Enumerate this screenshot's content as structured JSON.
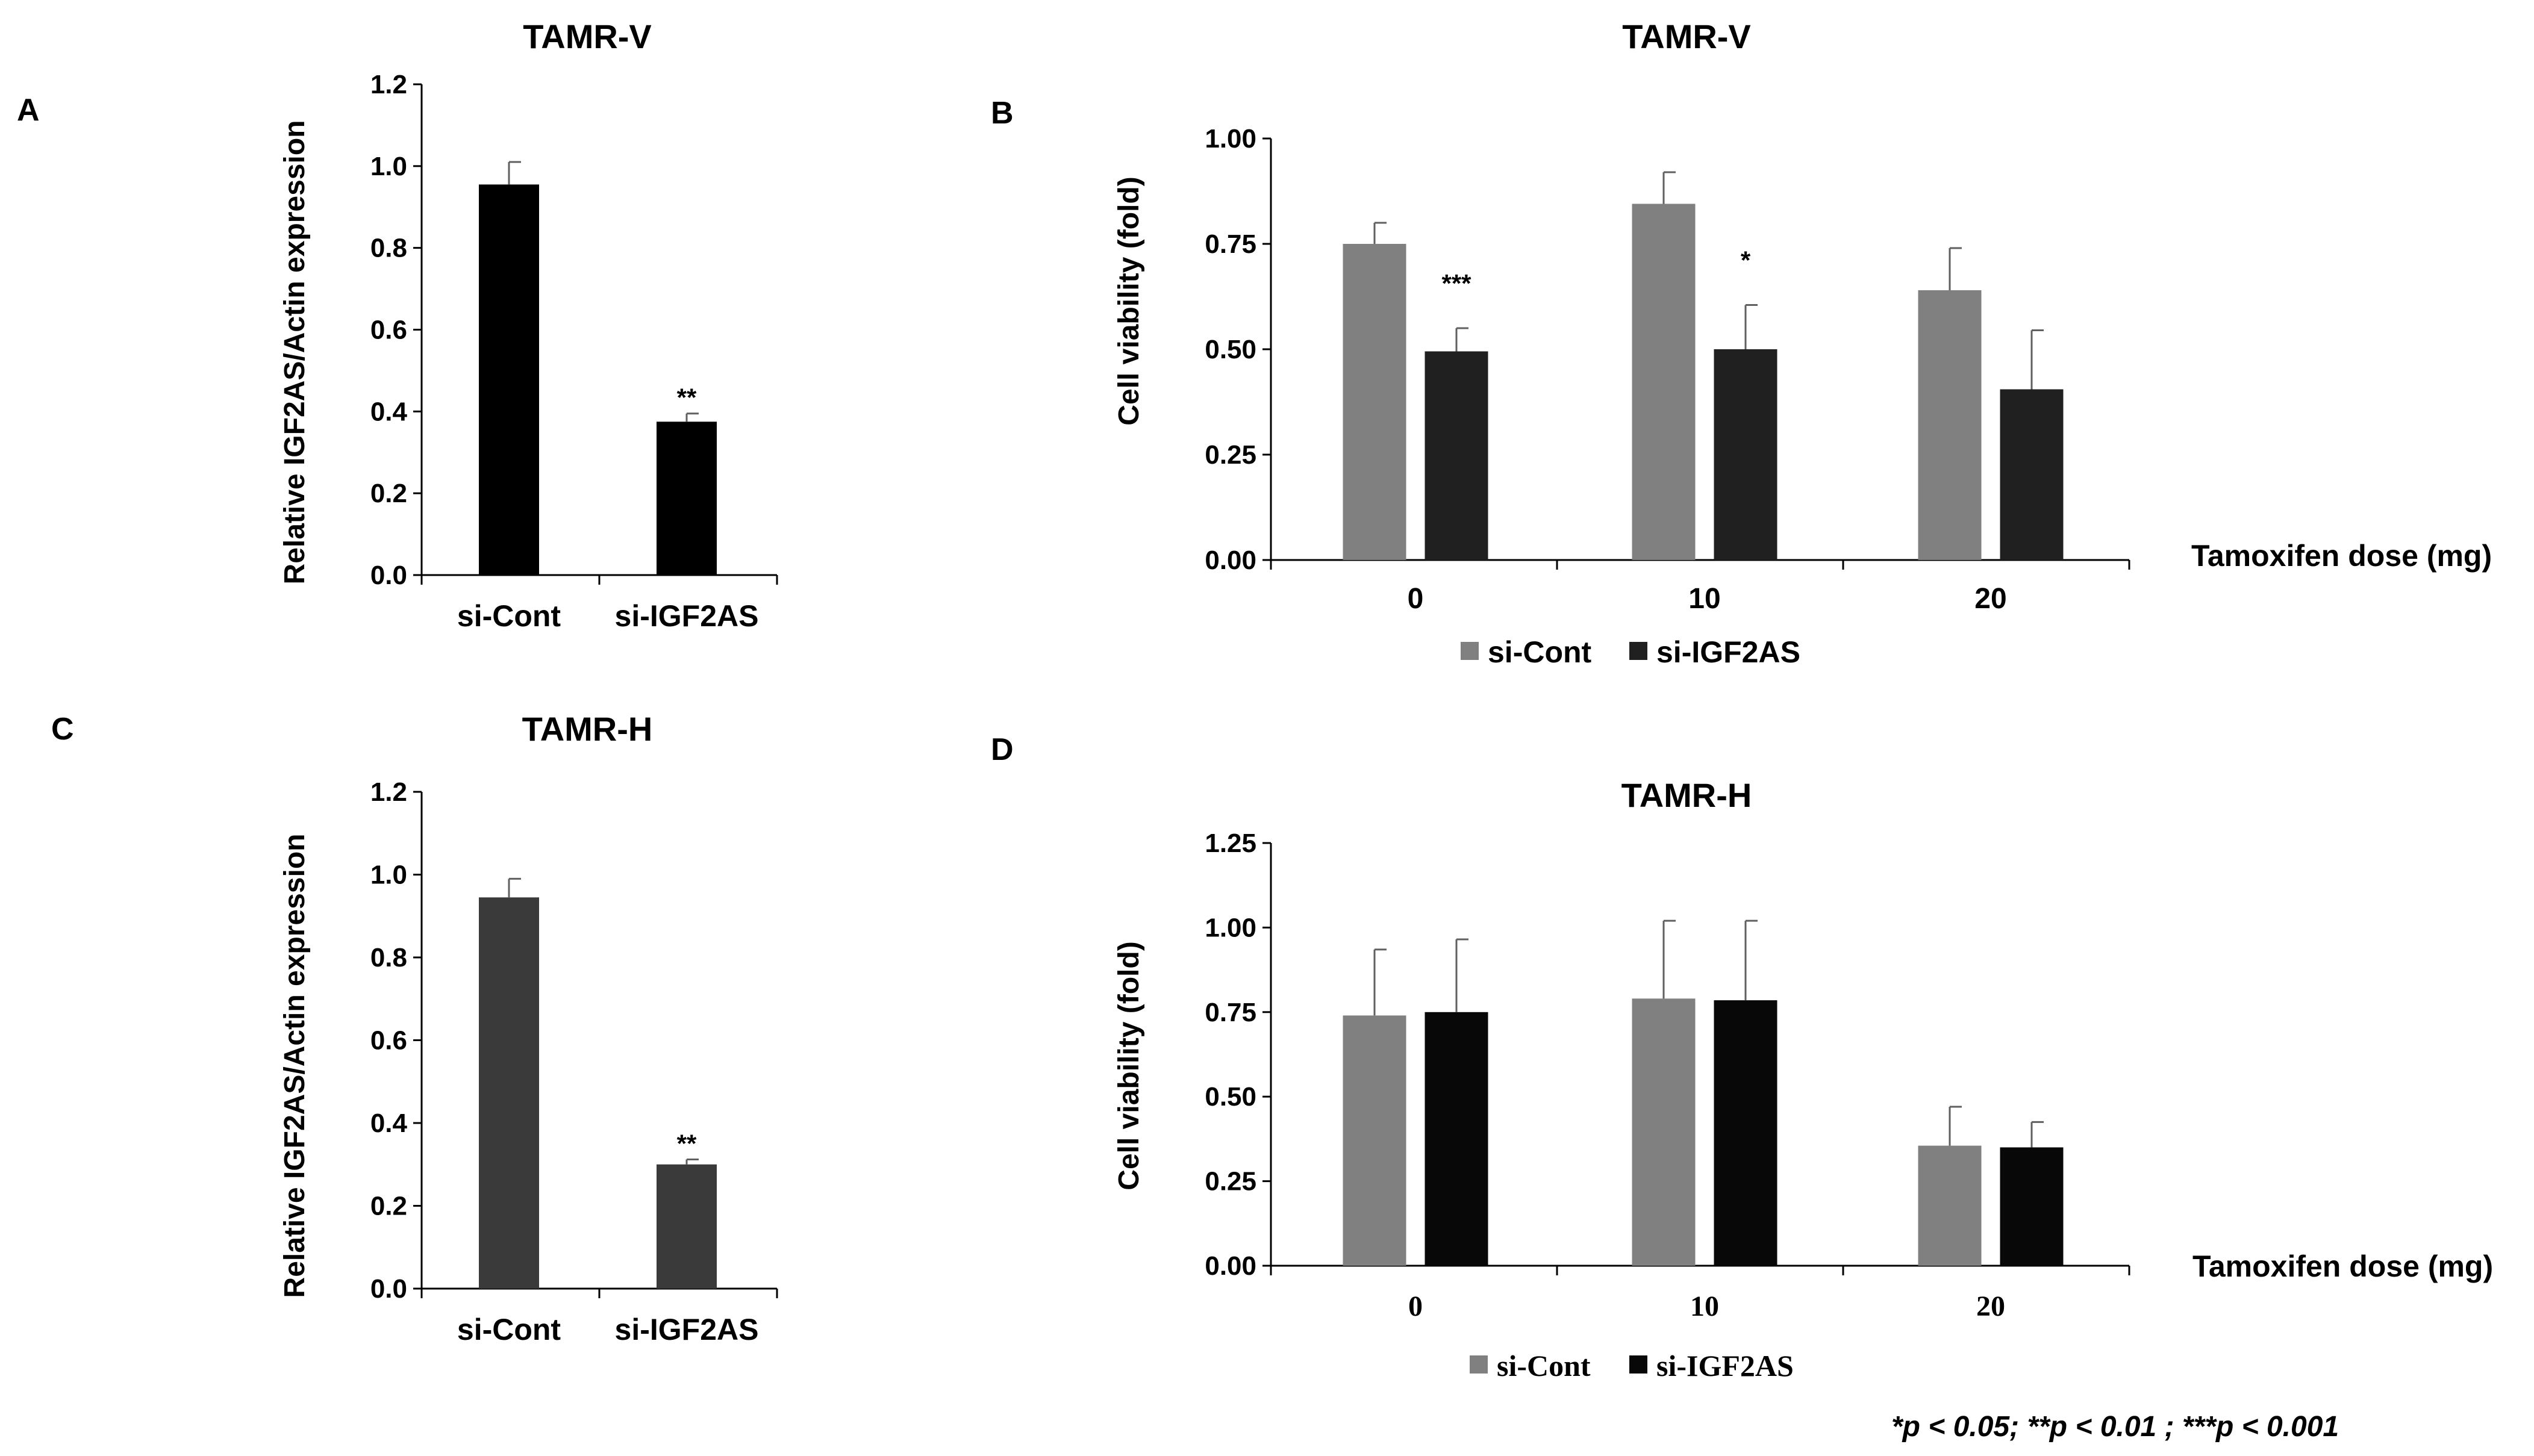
{
  "footnote": "*p < 0.05; **p < 0.01 ; ***p < 0.001",
  "colors": {
    "bar_black": "#000000",
    "bar_dark": "#3a3a3a",
    "gray": "#808080",
    "darkgray": "#202020",
    "black2": "#080808"
  },
  "chart_data": [
    {
      "panel": "A",
      "type": "bar",
      "title": "TAMR-V",
      "ylabel": "Relative IGF2AS/Actin expression",
      "xlabel": "",
      "ylim": [
        0,
        1.2
      ],
      "yticks": [
        "0.0",
        "0.2",
        "0.4",
        "0.6",
        "0.8",
        "1.0",
        "1.2"
      ],
      "categories": [
        "si-Cont",
        "si-IGF2AS"
      ],
      "values": [
        0.955,
        0.375
      ],
      "errors": [
        0.055,
        0.02
      ],
      "annotations": [
        "",
        "**"
      ]
    },
    {
      "panel": "B",
      "type": "bar",
      "title": "TAMR-V",
      "ylabel": "Cell viability (fold)",
      "xlabel": "Tamoxifen dose (mg)",
      "ylim": [
        0,
        1.0
      ],
      "yticks": [
        "0.00",
        "0.25",
        "0.50",
        "0.75",
        "1.00"
      ],
      "categories": [
        "0",
        "10",
        "20"
      ],
      "series": [
        {
          "name": "si-Cont",
          "values": [
            0.75,
            0.845,
            0.64
          ],
          "errors": [
            0.05,
            0.075,
            0.1
          ]
        },
        {
          "name": "si-IGF2AS",
          "values": [
            0.495,
            0.5,
            0.405
          ],
          "errors": [
            0.055,
            0.105,
            0.14
          ]
        }
      ],
      "annotations": [
        {
          "cat": 0,
          "series": 1,
          "text": "***"
        },
        {
          "cat": 1,
          "series": 1,
          "text": "*"
        }
      ],
      "legend": "bottom"
    },
    {
      "panel": "C",
      "type": "bar",
      "title": "TAMR-H",
      "ylabel": "Relative IGF2AS/Actin expression",
      "xlabel": "",
      "ylim": [
        0,
        1.2
      ],
      "yticks": [
        "0.0",
        "0.2",
        "0.4",
        "0.6",
        "0.8",
        "1.0",
        "1.2"
      ],
      "categories": [
        "si-Cont",
        "si-IGF2AS"
      ],
      "values": [
        0.945,
        0.3
      ],
      "errors": [
        0.045,
        0.012
      ],
      "annotations": [
        "",
        "**"
      ]
    },
    {
      "panel": "D",
      "type": "bar",
      "title": "TAMR-H",
      "ylabel": "Cell viability (fold)",
      "xlabel": "Tamoxifen dose (mg)",
      "ylim": [
        0,
        1.25
      ],
      "yticks": [
        "0.00",
        "0.25",
        "0.50",
        "0.75",
        "1.00",
        "1.25"
      ],
      "categories": [
        "0",
        "10",
        "20"
      ],
      "series": [
        {
          "name": "si-Cont",
          "values": [
            0.74,
            0.79,
            0.355
          ],
          "errors": [
            0.195,
            0.23,
            0.115
          ]
        },
        {
          "name": "si-IGF2AS",
          "values": [
            0.75,
            0.785,
            0.35
          ],
          "errors": [
            0.215,
            0.235,
            0.075
          ]
        }
      ],
      "annotations": [],
      "legend": "bottom"
    }
  ]
}
